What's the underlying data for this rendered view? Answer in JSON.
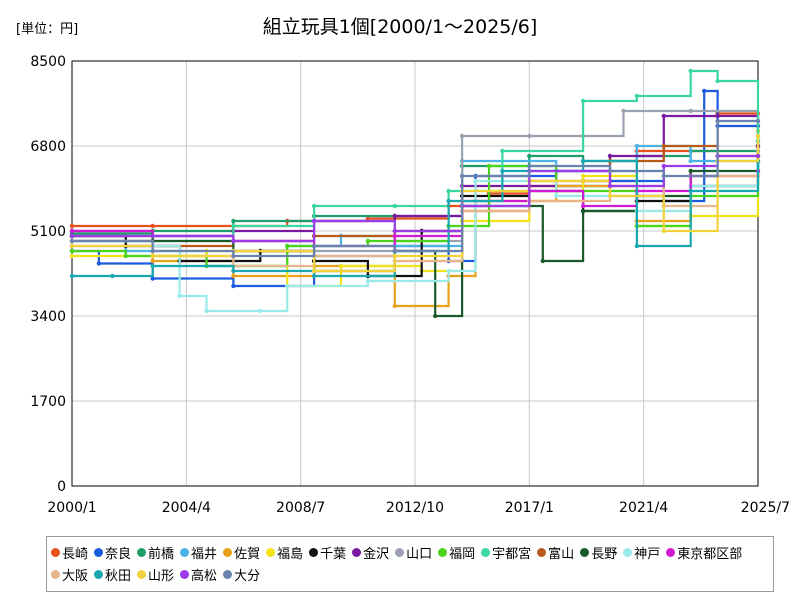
{
  "chart_data": {
    "type": "line",
    "title": "組立玩具1個[2000/1～2025/6]",
    "unit_label": "[単位：円]",
    "xlabel": "",
    "ylabel": "",
    "ylim": [
      0,
      8500
    ],
    "yticks": [
      0,
      1700,
      3400,
      5100,
      6800,
      8500
    ],
    "xlim": [
      2000.0,
      2025.5
    ],
    "xticks": [
      {
        "label": "2000/1",
        "value": 2000.0
      },
      {
        "label": "2004/4",
        "value": 2004.25
      },
      {
        "label": "2008/7",
        "value": 2008.5
      },
      {
        "label": "2012/10",
        "value": 2012.75
      },
      {
        "label": "2017/1",
        "value": 2017.0
      },
      {
        "label": "2021/4",
        "value": 2021.25
      },
      {
        "label": "2025/7",
        "value": 2025.5
      }
    ],
    "grid": true,
    "legend_position": "bottom",
    "series": [
      {
        "name": "長崎",
        "color": "#e8501c",
        "points": [
          [
            2000.0,
            5200
          ],
          [
            2003.0,
            5200
          ],
          [
            2008.0,
            5300
          ],
          [
            2011.0,
            5350
          ],
          [
            2014.0,
            5600
          ],
          [
            2015.5,
            5850
          ],
          [
            2017.0,
            6000
          ],
          [
            2019.0,
            6100
          ],
          [
            2021.0,
            6700
          ],
          [
            2024.0,
            7450
          ],
          [
            2025.5,
            7450
          ]
        ]
      },
      {
        "name": "奈良",
        "color": "#1a5be0",
        "points": [
          [
            2000.0,
            4700
          ],
          [
            2001.0,
            4450
          ],
          [
            2003.0,
            4150
          ],
          [
            2006.0,
            4000
          ],
          [
            2009.0,
            4600
          ],
          [
            2012.0,
            4800
          ],
          [
            2014.0,
            4500
          ],
          [
            2015.0,
            6200
          ],
          [
            2018.0,
            6000
          ],
          [
            2020.0,
            6100
          ],
          [
            2022.0,
            5700
          ],
          [
            2023.5,
            7900
          ],
          [
            2024.0,
            7200
          ],
          [
            2025.5,
            7200
          ]
        ]
      },
      {
        "name": "前橋",
        "color": "#1e9e6a",
        "points": [
          [
            2000.0,
            5050
          ],
          [
            2003.0,
            5100
          ],
          [
            2006.0,
            5300
          ],
          [
            2009.0,
            5400
          ],
          [
            2012.0,
            5400
          ],
          [
            2014.5,
            6400
          ],
          [
            2017.0,
            6600
          ],
          [
            2019.0,
            6500
          ],
          [
            2021.0,
            6600
          ],
          [
            2023.0,
            6700
          ],
          [
            2025.5,
            6600
          ]
        ]
      },
      {
        "name": "福井",
        "color": "#4ab3e8",
        "points": [
          [
            2000.0,
            5000
          ],
          [
            2002.0,
            4700
          ],
          [
            2005.0,
            4400
          ],
          [
            2008.0,
            4800
          ],
          [
            2010.0,
            5000
          ],
          [
            2012.0,
            4800
          ],
          [
            2014.5,
            6500
          ],
          [
            2018.0,
            6300
          ],
          [
            2021.0,
            6800
          ],
          [
            2023.0,
            6500
          ],
          [
            2025.5,
            6900
          ]
        ]
      },
      {
        "name": "佐賀",
        "color": "#e8a21a",
        "points": [
          [
            2000.0,
            4900
          ],
          [
            2003.0,
            4500
          ],
          [
            2006.0,
            4200
          ],
          [
            2009.0,
            4400
          ],
          [
            2012.0,
            3600
          ],
          [
            2014.0,
            4200
          ],
          [
            2015.0,
            5700
          ],
          [
            2018.0,
            6000
          ],
          [
            2021.0,
            5300
          ],
          [
            2023.0,
            6200
          ],
          [
            2025.5,
            7000
          ]
        ]
      },
      {
        "name": "福島",
        "color": "#f2e21a",
        "points": [
          [
            2000.0,
            4600
          ],
          [
            2002.0,
            4600
          ],
          [
            2005.0,
            4700
          ],
          [
            2008.0,
            4000
          ],
          [
            2010.0,
            4400
          ],
          [
            2013.0,
            4300
          ],
          [
            2014.5,
            5300
          ],
          [
            2017.0,
            5700
          ],
          [
            2019.0,
            6200
          ],
          [
            2021.0,
            5200
          ],
          [
            2023.0,
            5400
          ],
          [
            2025.5,
            7100
          ]
        ]
      },
      {
        "name": "千葉",
        "color": "#111111",
        "points": [
          [
            2000.0,
            5000
          ],
          [
            2002.0,
            4800
          ],
          [
            2004.0,
            4500
          ],
          [
            2007.0,
            4700
          ],
          [
            2009.0,
            4500
          ],
          [
            2011.0,
            4200
          ],
          [
            2013.0,
            5100
          ],
          [
            2014.5,
            5800
          ],
          [
            2017.0,
            5900
          ],
          [
            2019.0,
            5500
          ],
          [
            2021.0,
            5700
          ],
          [
            2023.0,
            6000
          ],
          [
            2025.5,
            6800
          ]
        ]
      },
      {
        "name": "金沢",
        "color": "#7a1aa0",
        "points": [
          [
            2000.0,
            5100
          ],
          [
            2003.0,
            5000
          ],
          [
            2006.0,
            5100
          ],
          [
            2009.0,
            5300
          ],
          [
            2012.0,
            5400
          ],
          [
            2014.5,
            6000
          ],
          [
            2018.0,
            6300
          ],
          [
            2020.0,
            6600
          ],
          [
            2022.0,
            7400
          ],
          [
            2024.0,
            7400
          ],
          [
            2025.5,
            6800
          ]
        ]
      },
      {
        "name": "山口",
        "color": "#9aa2b2",
        "points": [
          [
            2000.0,
            4800
          ],
          [
            2003.0,
            4900
          ],
          [
            2006.0,
            4700
          ],
          [
            2009.0,
            4700
          ],
          [
            2012.0,
            4900
          ],
          [
            2014.5,
            7000
          ],
          [
            2017.0,
            7000
          ],
          [
            2019.0,
            7000
          ],
          [
            2020.5,
            7500
          ],
          [
            2023.0,
            7500
          ],
          [
            2025.5,
            6700
          ]
        ]
      },
      {
        "name": "福岡",
        "color": "#4ad41a",
        "points": [
          [
            2000.0,
            4700
          ],
          [
            2002.0,
            4600
          ],
          [
            2005.0,
            4400
          ],
          [
            2008.0,
            4800
          ],
          [
            2011.0,
            4900
          ],
          [
            2014.0,
            5200
          ],
          [
            2015.5,
            6400
          ],
          [
            2018.0,
            5900
          ],
          [
            2021.0,
            5200
          ],
          [
            2023.0,
            5800
          ],
          [
            2025.5,
            6300
          ]
        ]
      },
      {
        "name": "宇都宮",
        "color": "#3ad8a0",
        "points": [
          [
            2000.0,
            4900
          ],
          [
            2003.0,
            5000
          ],
          [
            2006.0,
            5200
          ],
          [
            2009.0,
            5600
          ],
          [
            2012.0,
            5600
          ],
          [
            2014.0,
            5900
          ],
          [
            2016.0,
            6700
          ],
          [
            2019.0,
            7700
          ],
          [
            2021.0,
            7800
          ],
          [
            2023.0,
            8300
          ],
          [
            2024.0,
            8100
          ],
          [
            2025.5,
            6900
          ]
        ]
      },
      {
        "name": "富山",
        "color": "#b85a1a",
        "points": [
          [
            2000.0,
            4900
          ],
          [
            2003.0,
            4800
          ],
          [
            2006.0,
            4900
          ],
          [
            2009.0,
            5000
          ],
          [
            2012.0,
            5100
          ],
          [
            2014.5,
            5500
          ],
          [
            2017.0,
            6100
          ],
          [
            2020.0,
            6500
          ],
          [
            2022.0,
            6800
          ],
          [
            2024.0,
            6600
          ],
          [
            2025.5,
            6600
          ]
        ]
      },
      {
        "name": "長野",
        "color": "#1a5a2a",
        "points": [
          [
            2000.0,
            5000
          ],
          [
            2003.0,
            4900
          ],
          [
            2006.0,
            4700
          ],
          [
            2009.0,
            4300
          ],
          [
            2012.0,
            4700
          ],
          [
            2013.5,
            3400
          ],
          [
            2014.5,
            5600
          ],
          [
            2017.5,
            4500
          ],
          [
            2019.0,
            5500
          ],
          [
            2021.0,
            5800
          ],
          [
            2023.0,
            6300
          ],
          [
            2025.5,
            6500
          ]
        ]
      },
      {
        "name": "神戸",
        "color": "#9aeaea",
        "points": [
          [
            2000.0,
            4900
          ],
          [
            2003.0,
            4800
          ],
          [
            2004.0,
            3800
          ],
          [
            2005.0,
            3500
          ],
          [
            2007.0,
            3500
          ],
          [
            2008.0,
            4000
          ],
          [
            2011.0,
            4100
          ],
          [
            2014.0,
            4300
          ],
          [
            2015.0,
            6100
          ],
          [
            2018.0,
            5800
          ],
          [
            2021.0,
            5500
          ],
          [
            2023.0,
            6000
          ],
          [
            2025.5,
            6400
          ]
        ]
      },
      {
        "name": "東京都区部",
        "color": "#d21ad2",
        "points": [
          [
            2000.0,
            5100
          ],
          [
            2003.0,
            5000
          ],
          [
            2006.0,
            4900
          ],
          [
            2009.0,
            4800
          ],
          [
            2012.0,
            5000
          ],
          [
            2014.5,
            5700
          ],
          [
            2017.0,
            5900
          ],
          [
            2019.0,
            5600
          ],
          [
            2021.0,
            5900
          ],
          [
            2023.0,
            6200
          ],
          [
            2025.5,
            6300
          ]
        ]
      },
      {
        "name": "大阪",
        "color": "#e8b48a",
        "points": [
          [
            2000.0,
            4900
          ],
          [
            2003.0,
            4600
          ],
          [
            2006.0,
            4400
          ],
          [
            2009.0,
            4600
          ],
          [
            2012.0,
            4500
          ],
          [
            2014.5,
            5500
          ],
          [
            2017.0,
            5700
          ],
          [
            2020.0,
            6000
          ],
          [
            2022.0,
            5600
          ],
          [
            2024.0,
            6200
          ],
          [
            2025.5,
            6200
          ]
        ]
      },
      {
        "name": "秋田",
        "color": "#1aa8b0",
        "points": [
          [
            2000.0,
            4200
          ],
          [
            2001.5,
            4200
          ],
          [
            2003.0,
            4400
          ],
          [
            2006.0,
            4300
          ],
          [
            2009.0,
            4200
          ],
          [
            2012.0,
            4700
          ],
          [
            2014.0,
            5700
          ],
          [
            2016.0,
            6300
          ],
          [
            2019.0,
            6500
          ],
          [
            2021.0,
            4800
          ],
          [
            2023.0,
            5900
          ],
          [
            2025.5,
            6500
          ]
        ]
      },
      {
        "name": "山形",
        "color": "#f2d23a",
        "points": [
          [
            2000.0,
            4800
          ],
          [
            2003.0,
            4600
          ],
          [
            2006.0,
            4700
          ],
          [
            2009.0,
            4300
          ],
          [
            2012.0,
            4600
          ],
          [
            2014.5,
            5900
          ],
          [
            2017.0,
            6100
          ],
          [
            2020.0,
            5800
          ],
          [
            2022.0,
            5100
          ],
          [
            2024.0,
            6500
          ],
          [
            2025.5,
            7000
          ]
        ]
      },
      {
        "name": "高松",
        "color": "#9a3ae8",
        "points": [
          [
            2000.0,
            5000
          ],
          [
            2003.0,
            5000
          ],
          [
            2006.0,
            4900
          ],
          [
            2009.0,
            5300
          ],
          [
            2012.0,
            5100
          ],
          [
            2014.5,
            5600
          ],
          [
            2017.0,
            6300
          ],
          [
            2020.0,
            6000
          ],
          [
            2022.0,
            6400
          ],
          [
            2024.0,
            6600
          ],
          [
            2025.5,
            6600
          ]
        ]
      },
      {
        "name": "大分",
        "color": "#6a82ae",
        "points": [
          [
            2000.0,
            4900
          ],
          [
            2003.0,
            4700
          ],
          [
            2006.0,
            4600
          ],
          [
            2009.0,
            4800
          ],
          [
            2012.0,
            4700
          ],
          [
            2014.5,
            6200
          ],
          [
            2017.0,
            6400
          ],
          [
            2020.0,
            6300
          ],
          [
            2022.0,
            6200
          ],
          [
            2024.0,
            7300
          ],
          [
            2025.5,
            7300
          ]
        ]
      }
    ]
  }
}
